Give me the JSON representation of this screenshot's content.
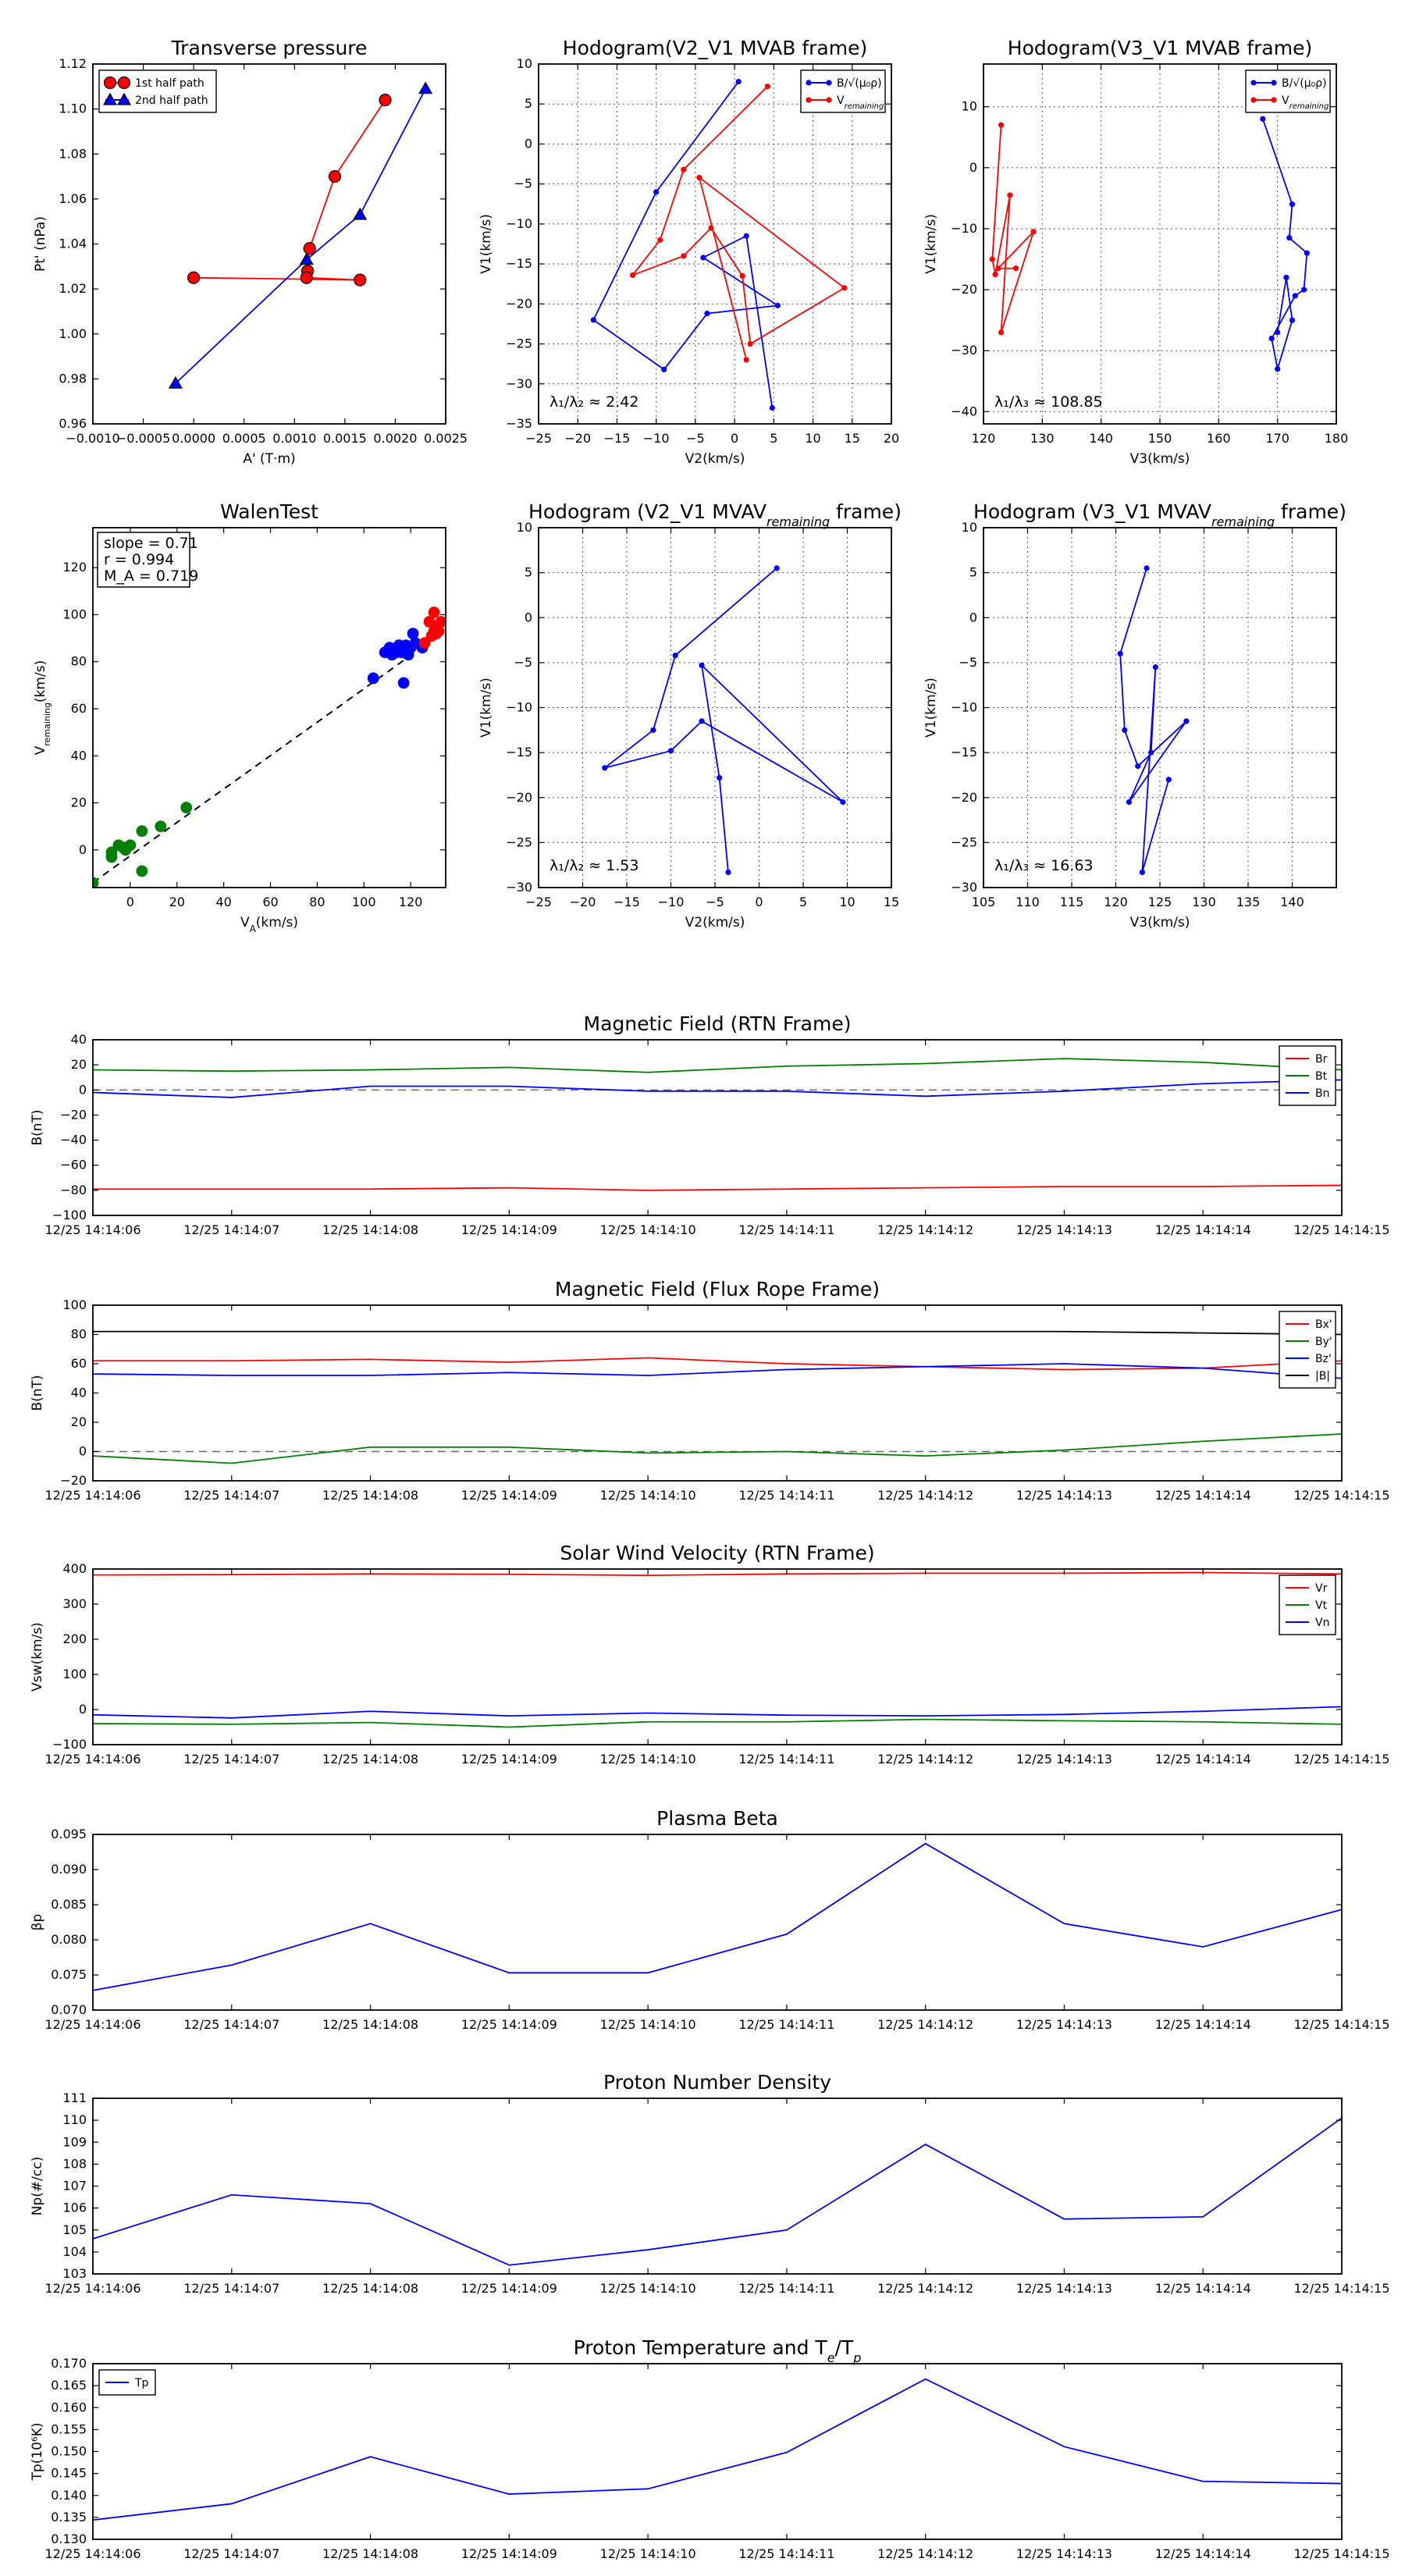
{
  "chart_data": [
    {
      "id": "transverse",
      "type": "line",
      "title": "Transverse pressure",
      "xlabel": "A' (T·m)",
      "ylabel": "Pt' (nPa)",
      "xlim": [
        -0.001,
        0.0025
      ],
      "ylim": [
        0.96,
        1.12
      ],
      "xticks": [
        -0.001,
        -0.0005,
        0,
        0.0005,
        0.001,
        0.0015,
        0.002,
        0.0025
      ],
      "xtick_labels": [
        "−0.0010",
        "−0.0005",
        "0.0000",
        "0.0005",
        "0.0010",
        "0.0015",
        "0.0020",
        "0.0025"
      ],
      "yticks": [
        0.96,
        0.98,
        1.0,
        1.02,
        1.04,
        1.06,
        1.08,
        1.1,
        1.12
      ],
      "ytick_labels": [
        "0.96",
        "0.98",
        "1.00",
        "1.02",
        "1.04",
        "1.06",
        "1.08",
        "1.10",
        "1.12"
      ],
      "grid": false,
      "legend": "top-left",
      "series": [
        {
          "name": "1st half path",
          "color": "#ff0000",
          "marker": "circle",
          "x": [
            0.0019,
            0.0014,
            0.00115,
            0.00113,
            0.00112,
            0.00165,
            0.0
          ],
          "y": [
            1.104,
            1.07,
            1.038,
            1.028,
            1.025,
            1.024,
            1.025
          ]
        },
        {
          "name": "2nd half path",
          "color": "#0000ff",
          "marker": "triangle",
          "x": [
            0.0023,
            0.00165,
            0.00112,
            -0.00018
          ],
          "y": [
            1.109,
            1.053,
            1.033,
            0.978
          ]
        }
      ]
    },
    {
      "id": "hodo_v2_mvab",
      "type": "line",
      "title": "Hodogram(V2_V1 MVAB frame)",
      "xlabel": "V2(km/s)",
      "ylabel": "V1(km/s)",
      "xlim": [
        -25,
        20
      ],
      "ylim": [
        -35,
        10
      ],
      "xticks": [
        -25,
        -20,
        -15,
        -10,
        -5,
        0,
        5,
        10,
        15,
        20
      ],
      "xtick_labels": [
        "−25",
        "−20",
        "−15",
        "−10",
        "−5",
        "0",
        "5",
        "10",
        "15",
        "20"
      ],
      "yticks": [
        -35,
        -30,
        -25,
        -20,
        -15,
        -10,
        -5,
        0,
        5,
        10
      ],
      "ytick_labels": [
        "−35",
        "−30",
        "−25",
        "−20",
        "−15",
        "−10",
        "−5",
        "0",
        "5",
        "10"
      ],
      "grid": true,
      "legend": "top-right",
      "annotation": "λ₁/λ₂ ≈ 2.42",
      "series": [
        {
          "name": "B/√(μ₀ρ)",
          "color": "#0000ff",
          "marker": "dot",
          "x": [
            0.5,
            -10,
            -18,
            -9,
            -3.5,
            5.5,
            -4,
            1.5,
            4.8
          ],
          "y": [
            7.8,
            -6,
            -22,
            -28.2,
            -21.2,
            -20.2,
            -14.2,
            -11.5,
            -33
          ]
        },
        {
          "name": "V_remaining",
          "color": "#ff0000",
          "marker": "dot",
          "x": [
            4.2,
            -6.5,
            -9.5,
            -13,
            -6.5,
            -3,
            1,
            2,
            14,
            -4.5,
            1.5
          ],
          "y": [
            7.2,
            -3.2,
            -12,
            -16.4,
            -14,
            -10.5,
            -16.5,
            -25,
            -18,
            -4.2,
            -27
          ]
        }
      ]
    },
    {
      "id": "hodo_v3_mvab",
      "type": "line",
      "title": "Hodogram(V3_V1 MVAB frame)",
      "xlabel": "V3(km/s)",
      "ylabel": "V1(km/s)",
      "xlim": [
        120,
        180
      ],
      "ylim": [
        -42,
        17
      ],
      "xticks": [
        120,
        130,
        140,
        150,
        160,
        170,
        180
      ],
      "xtick_labels": [
        "120",
        "130",
        "140",
        "150",
        "160",
        "170",
        "180"
      ],
      "yticks": [
        -40,
        -30,
        -20,
        -10,
        0,
        10
      ],
      "ytick_labels": [
        "−40",
        "−30",
        "−20",
        "−10",
        "0",
        "10"
      ],
      "grid": true,
      "legend": "top-right",
      "annotation": "λ₁/λ₃ ≈ 108.85",
      "series": [
        {
          "name": "B/√(μ₀ρ)",
          "color": "#0000ff",
          "marker": "dot",
          "x": [
            167.5,
            172.5,
            172,
            175,
            174.5,
            173,
            169,
            170,
            172.5,
            171.5,
            170
          ],
          "y": [
            8,
            -6,
            -11.5,
            -14,
            -20,
            -21,
            -28,
            -33,
            -25,
            -18,
            -27
          ]
        },
        {
          "name": "V_remaining",
          "color": "#ff0000",
          "marker": "dot",
          "x": [
            123,
            121.5,
            122,
            124.5,
            123,
            128.5,
            122.5,
            125.5
          ],
          "y": [
            7,
            -15,
            -17.5,
            -4.5,
            -27,
            -10.5,
            -16.5,
            -16.5
          ]
        }
      ]
    },
    {
      "id": "walen",
      "type": "scatter",
      "title": "WalenTest",
      "xlabel": "V_A(km/s)",
      "ylabel": "V_remaining(km/s)",
      "xlim": [
        -16,
        135
      ],
      "ylim": [
        -16,
        137
      ],
      "xticks": [
        0,
        20,
        40,
        60,
        80,
        100,
        120
      ],
      "xtick_labels": [
        "0",
        "20",
        "40",
        "60",
        "80",
        "100",
        "120"
      ],
      "yticks": [
        0,
        20,
        40,
        60,
        80,
        100,
        120
      ],
      "ytick_labels": [
        "0",
        "20",
        "40",
        "60",
        "80",
        "100",
        "120"
      ],
      "grid": false,
      "textbox": [
        "slope = 0.71",
        "r = 0.994",
        "M_A = 0.719"
      ],
      "fit": {
        "slope": 0.71,
        "intercept": -2.5,
        "color": "#000000",
        "style": "dashed"
      },
      "series": [
        {
          "name": "green",
          "color": "#008000",
          "x": [
            -16,
            -8,
            -8,
            -5,
            -3,
            -2,
            0,
            5,
            5,
            13,
            24
          ],
          "y": [
            -14,
            -1,
            -3,
            2,
            1,
            0,
            2,
            8,
            -9,
            10,
            18
          ]
        },
        {
          "name": "blue",
          "color": "#0000ff",
          "x": [
            104,
            109,
            111,
            112,
            113,
            114,
            115,
            116,
            117,
            118,
            119,
            120,
            121,
            122,
            125
          ],
          "y": [
            73,
            84,
            86,
            83,
            85,
            84,
            87,
            84,
            71,
            87,
            83,
            86,
            92,
            88,
            86
          ]
        },
        {
          "name": "red",
          "color": "#ff0000",
          "x": [
            126,
            128,
            129,
            130,
            130,
            131,
            131,
            132,
            133
          ],
          "y": [
            88,
            97,
            91,
            93,
            101,
            92,
            95,
            93,
            97
          ]
        }
      ]
    },
    {
      "id": "hodo_v2_mvav",
      "type": "line",
      "title": "Hodogram (V2_V1 MVAV_remaining frame)",
      "xlabel": "V2(km/s)",
      "ylabel": "V1(km/s)",
      "xlim": [
        -25,
        15
      ],
      "ylim": [
        -30,
        10
      ],
      "xticks": [
        -25,
        -20,
        -15,
        -10,
        -5,
        0,
        5,
        10,
        15
      ],
      "xtick_labels": [
        "−25",
        "−20",
        "−15",
        "−10",
        "−5",
        "0",
        "5",
        "10",
        "15"
      ],
      "yticks": [
        -30,
        -25,
        -20,
        -15,
        -10,
        -5,
        0,
        5,
        10
      ],
      "ytick_labels": [
        "−30",
        "−25",
        "−20",
        "−15",
        "−10",
        "−5",
        "0",
        "5",
        "10"
      ],
      "grid": true,
      "annotation": "λ₁/λ₂ ≈ 1.53",
      "series": [
        {
          "name": "hodogram",
          "color": "#0000ff",
          "marker": "dot",
          "x": [
            2,
            -9.5,
            -12,
            -17.5,
            -10,
            -6.5,
            9.5,
            -6.5,
            -4.5,
            -3.5
          ],
          "y": [
            5.5,
            -4.2,
            -12.5,
            -16.7,
            -14.8,
            -11.5,
            -20.5,
            -5.3,
            -17.8,
            -28.3
          ]
        }
      ]
    },
    {
      "id": "hodo_v3_mvav",
      "type": "line",
      "title": "Hodogram (V3_V1 MVAV_remaining frame)",
      "xlabel": "V3(km/s)",
      "ylabel": "V1(km/s)",
      "xlim": [
        105,
        145
      ],
      "ylim": [
        -30,
        10
      ],
      "xticks": [
        105,
        110,
        115,
        120,
        125,
        130,
        135,
        140
      ],
      "xtick_labels": [
        "105",
        "110",
        "115",
        "120",
        "125",
        "130",
        "135",
        "140"
      ],
      "yticks": [
        -30,
        -25,
        -20,
        -15,
        -10,
        -5,
        0,
        5,
        10
      ],
      "ytick_labels": [
        "−30",
        "−25",
        "−20",
        "−15",
        "−10",
        "−5",
        "0",
        "5",
        "10"
      ],
      "grid": true,
      "annotation": "λ₁/λ₃ ≈ 16.63",
      "series": [
        {
          "name": "hodogram",
          "color": "#0000ff",
          "marker": "dot",
          "x": [
            123.5,
            120.5,
            121,
            122.5,
            128,
            121.5,
            124,
            124.5,
            123,
            126
          ],
          "y": [
            5.5,
            -4,
            -12.5,
            -16.5,
            -11.5,
            -20.5,
            -15,
            -5.5,
            -28.3,
            -18
          ]
        }
      ]
    },
    {
      "id": "mag_rtn",
      "type": "line",
      "title": "Magnetic Field (RTN Frame)",
      "ylabel": "B(nT)",
      "categories": [
        "12/25 14:14:06",
        "12/25 14:14:07",
        "12/25 14:14:08",
        "12/25 14:14:09",
        "12/25 14:14:10",
        "12/25 14:14:11",
        "12/25 14:14:12",
        "12/25 14:14:13",
        "12/25 14:14:14",
        "12/25 14:14:15"
      ],
      "ylim": [
        -100,
        40
      ],
      "yticks": [
        -100,
        -80,
        -60,
        -40,
        -20,
        0,
        20,
        40
      ],
      "ytick_labels": [
        "−100",
        "−80",
        "−60",
        "−40",
        "−20",
        "0",
        "20",
        "40"
      ],
      "zero_line": true,
      "legend": "top-right",
      "series": [
        {
          "name": "Br",
          "color": "#ff0000",
          "values": [
            -79,
            -79,
            -79,
            -78,
            -80,
            -79,
            -78,
            -77,
            -77,
            -76
          ]
        },
        {
          "name": "Bt",
          "color": "#008000",
          "values": [
            16,
            15,
            16,
            18,
            14,
            19,
            21,
            25,
            22,
            16
          ]
        },
        {
          "name": "Bn",
          "color": "#0000ff",
          "values": [
            -2,
            -6,
            3,
            3,
            -1,
            -1,
            -5,
            -1,
            5,
            8
          ]
        }
      ]
    },
    {
      "id": "mag_flux",
      "type": "line",
      "title": "Magnetic Field (Flux Rope Frame)",
      "ylabel": "B(nT)",
      "categories": [
        "12/25 14:14:06",
        "12/25 14:14:07",
        "12/25 14:14:08",
        "12/25 14:14:09",
        "12/25 14:14:10",
        "12/25 14:14:11",
        "12/25 14:14:12",
        "12/25 14:14:13",
        "12/25 14:14:14",
        "12/25 14:14:15"
      ],
      "ylim": [
        -20,
        100
      ],
      "yticks": [
        -20,
        0,
        20,
        40,
        60,
        80,
        100
      ],
      "ytick_labels": [
        "−20",
        "0",
        "20",
        "40",
        "60",
        "80",
        "100"
      ],
      "zero_line": true,
      "legend": "top-right",
      "series": [
        {
          "name": "Bx'",
          "color": "#ff0000",
          "values": [
            62,
            62,
            63,
            61,
            64,
            60,
            58,
            56,
            57,
            62
          ]
        },
        {
          "name": "By'",
          "color": "#008000",
          "values": [
            -3,
            -8,
            3,
            3,
            -1,
            0,
            -3,
            1,
            7,
            12
          ]
        },
        {
          "name": "Bz'",
          "color": "#0000ff",
          "values": [
            53,
            52,
            52,
            54,
            52,
            56,
            58,
            60,
            57,
            50
          ]
        },
        {
          "name": "|B|",
          "color": "#000000",
          "values": [
            82,
            82,
            82,
            82,
            82,
            82,
            82,
            82,
            81,
            80
          ]
        }
      ]
    },
    {
      "id": "vsw",
      "type": "line",
      "title": "Solar Wind Velocity (RTN Frame)",
      "ylabel": "Vsw(km/s)",
      "categories": [
        "12/25 14:14:06",
        "12/25 14:14:07",
        "12/25 14:14:08",
        "12/25 14:14:09",
        "12/25 14:14:10",
        "12/25 14:14:11",
        "12/25 14:14:12",
        "12/25 14:14:13",
        "12/25 14:14:14",
        "12/25 14:14:15"
      ],
      "ylim": [
        -100,
        400
      ],
      "yticks": [
        -100,
        0,
        100,
        200,
        300,
        400
      ],
      "ytick_labels": [
        "−100",
        "0",
        "100",
        "200",
        "300",
        "400"
      ],
      "legend": "top-right",
      "series": [
        {
          "name": "Vr",
          "color": "#ff0000",
          "values": [
            383,
            384,
            386,
            385,
            382,
            386,
            388,
            388,
            390,
            386
          ]
        },
        {
          "name": "Vt",
          "color": "#008000",
          "values": [
            -40,
            -42,
            -37,
            -50,
            -35,
            -35,
            -28,
            -32,
            -35,
            -42
          ]
        },
        {
          "name": "Vn",
          "color": "#0000ff",
          "values": [
            -15,
            -24,
            -5,
            -18,
            -10,
            -16,
            -18,
            -14,
            -5,
            8
          ]
        }
      ]
    },
    {
      "id": "beta",
      "type": "line",
      "title": "Plasma Beta",
      "ylabel": "βp",
      "categories": [
        "12/25 14:14:06",
        "12/25 14:14:07",
        "12/25 14:14:08",
        "12/25 14:14:09",
        "12/25 14:14:10",
        "12/25 14:14:11",
        "12/25 14:14:12",
        "12/25 14:14:13",
        "12/25 14:14:14",
        "12/25 14:14:15"
      ],
      "ylim": [
        0.07,
        0.095
      ],
      "yticks": [
        0.07,
        0.075,
        0.08,
        0.085,
        0.09,
        0.095
      ],
      "ytick_labels": [
        "0.070",
        "0.075",
        "0.080",
        "0.085",
        "0.090",
        "0.095"
      ],
      "series": [
        {
          "name": "beta",
          "color": "#0000ff",
          "values": [
            0.0728,
            0.0764,
            0.0823,
            0.0753,
            0.0753,
            0.0808,
            0.0937,
            0.0823,
            0.079,
            0.0843
          ]
        }
      ]
    },
    {
      "id": "density",
      "type": "line",
      "title": "Proton Number Density",
      "ylabel": "Np(#/cc)",
      "categories": [
        "12/25 14:14:06",
        "12/25 14:14:07",
        "12/25 14:14:08",
        "12/25 14:14:09",
        "12/25 14:14:10",
        "12/25 14:14:11",
        "12/25 14:14:12",
        "12/25 14:14:13",
        "12/25 14:14:14",
        "12/25 14:14:15"
      ],
      "ylim": [
        103,
        111
      ],
      "yticks": [
        103,
        104,
        105,
        106,
        107,
        108,
        109,
        110,
        111
      ],
      "ytick_labels": [
        "103",
        "104",
        "105",
        "106",
        "107",
        "108",
        "109",
        "110",
        "111"
      ],
      "series": [
        {
          "name": "Np",
          "color": "#0000ff",
          "values": [
            104.6,
            106.6,
            106.2,
            103.4,
            104.1,
            105.0,
            108.9,
            105.5,
            105.6,
            110.1
          ]
        }
      ]
    },
    {
      "id": "temperature",
      "type": "line",
      "title": "Proton Temperature and Te/Tp",
      "ylabel": "Tp(10⁶K)",
      "categories": [
        "12/25 14:14:06",
        "12/25 14:14:07",
        "12/25 14:14:08",
        "12/25 14:14:09",
        "12/25 14:14:10",
        "12/25 14:14:11",
        "12/25 14:14:12",
        "12/25 14:14:13",
        "12/25 14:14:14",
        "12/25 14:14:15"
      ],
      "ylim": [
        0.13,
        0.17
      ],
      "yticks": [
        0.13,
        0.135,
        0.14,
        0.145,
        0.15,
        0.155,
        0.16,
        0.165,
        0.17
      ],
      "ytick_labels": [
        "0.130",
        "0.135",
        "0.140",
        "0.145",
        "0.150",
        "0.155",
        "0.160",
        "0.165",
        "0.170"
      ],
      "legend": "top-left",
      "series": [
        {
          "name": "Tp",
          "color": "#0000ff",
          "values": [
            0.1344,
            0.1381,
            0.1488,
            0.1403,
            0.1415,
            0.1498,
            0.1665,
            0.1511,
            0.1432,
            0.1427
          ]
        }
      ]
    }
  ]
}
